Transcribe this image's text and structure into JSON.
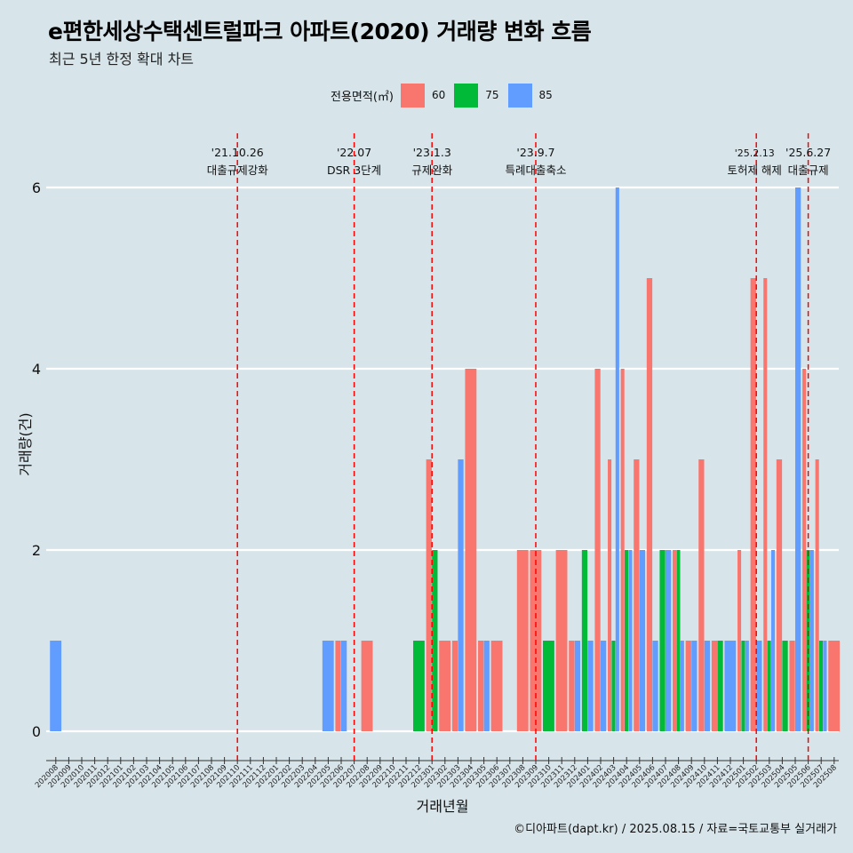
{
  "title": "e편한세상수택센트럴파크 아파트(2020) 거래량 변화 흐름",
  "subtitle": "최근 5년 한정 확대 차트",
  "caption": "©디아파트(dapt.kr) / 2025.08.15 / 자료=국토교통부 실거래가",
  "colors": {
    "background": "#d7e4ea",
    "60": "#f8766d",
    "75": "#00ba38",
    "85": "#619cff",
    "event_line": "#ff0000"
  },
  "chart_data": {
    "type": "bar",
    "xlabel": "거래년월",
    "ylabel": "거래량(건)",
    "ylim": [
      0,
      6.4
    ],
    "yticks": [
      0,
      2,
      4,
      6
    ],
    "grid": "horizontal",
    "legend": {
      "title": "전용면적(㎡)",
      "position": "top",
      "items": [
        {
          "label": "60",
          "color": "#f8766d"
        },
        {
          "label": "75",
          "color": "#00ba38"
        },
        {
          "label": "85",
          "color": "#619cff"
        }
      ]
    },
    "categories": [
      "202008",
      "202009",
      "202010",
      "202011",
      "202012",
      "202101",
      "202102",
      "202103",
      "202104",
      "202105",
      "202106",
      "202107",
      "202108",
      "202109",
      "202110",
      "202111",
      "202112",
      "202201",
      "202202",
      "202203",
      "202204",
      "202205",
      "202206",
      "202207",
      "202208",
      "202209",
      "202210",
      "202211",
      "202212",
      "202301",
      "202302",
      "202303",
      "202304",
      "202305",
      "202306",
      "202307",
      "202308",
      "202309",
      "202310",
      "202311",
      "202312",
      "202401",
      "202402",
      "202403",
      "202404",
      "202405",
      "202406",
      "202407",
      "202408",
      "202409",
      "202410",
      "202411",
      "202412",
      "202501",
      "202502",
      "202503",
      "202504",
      "202505",
      "202506",
      "202507",
      "202508"
    ],
    "series": [
      {
        "name": "60",
        "values": [
          0,
          0,
          0,
          0,
          0,
          0,
          0,
          0,
          0,
          0,
          0,
          0,
          0,
          0,
          0,
          0,
          0,
          0,
          0,
          0,
          0,
          0,
          1,
          0,
          1,
          0,
          0,
          0,
          0,
          3,
          1,
          1,
          4,
          1,
          1,
          0,
          2,
          2,
          0,
          2,
          1,
          0,
          4,
          3,
          4,
          3,
          5,
          0,
          2,
          1,
          3,
          1,
          0,
          2,
          5,
          5,
          3,
          1,
          4,
          3,
          1
        ]
      },
      {
        "name": "75",
        "values": [
          0,
          0,
          0,
          0,
          0,
          0,
          0,
          0,
          0,
          0,
          0,
          0,
          0,
          0,
          0,
          0,
          0,
          0,
          0,
          0,
          0,
          0,
          0,
          0,
          0,
          0,
          0,
          0,
          1,
          2,
          0,
          0,
          0,
          0,
          0,
          0,
          0,
          0,
          1,
          0,
          0,
          2,
          0,
          1,
          2,
          0,
          0,
          2,
          2,
          0,
          0,
          1,
          0,
          1,
          0,
          1,
          1,
          0,
          2,
          1,
          0
        ]
      },
      {
        "name": "85",
        "values": [
          1,
          0,
          0,
          0,
          0,
          0,
          0,
          0,
          0,
          0,
          0,
          0,
          0,
          0,
          0,
          0,
          0,
          0,
          0,
          0,
          0,
          1,
          1,
          0,
          0,
          0,
          0,
          0,
          0,
          0,
          0,
          3,
          0,
          1,
          0,
          0,
          0,
          0,
          0,
          0,
          1,
          1,
          1,
          6,
          2,
          2,
          1,
          2,
          1,
          1,
          1,
          0,
          1,
          1,
          1,
          2,
          0,
          6,
          2,
          1,
          0
        ]
      }
    ],
    "events": [
      {
        "x": "202110",
        "date": "'21.10.26",
        "label": "대출규제강화"
      },
      {
        "x": "202207",
        "date": "'22.07",
        "label": "DSR 3단계"
      },
      {
        "x": "202301",
        "date": "'23.1.3",
        "label": "규제완화"
      },
      {
        "x": "202309",
        "date": "'23.9.7",
        "label": "특례대출축소"
      },
      {
        "x": "202502",
        "date": "'25.2.13",
        "label": "토허제 해제"
      },
      {
        "x": "202506",
        "date": "'25.6.27",
        "label": "대출규제"
      }
    ]
  }
}
